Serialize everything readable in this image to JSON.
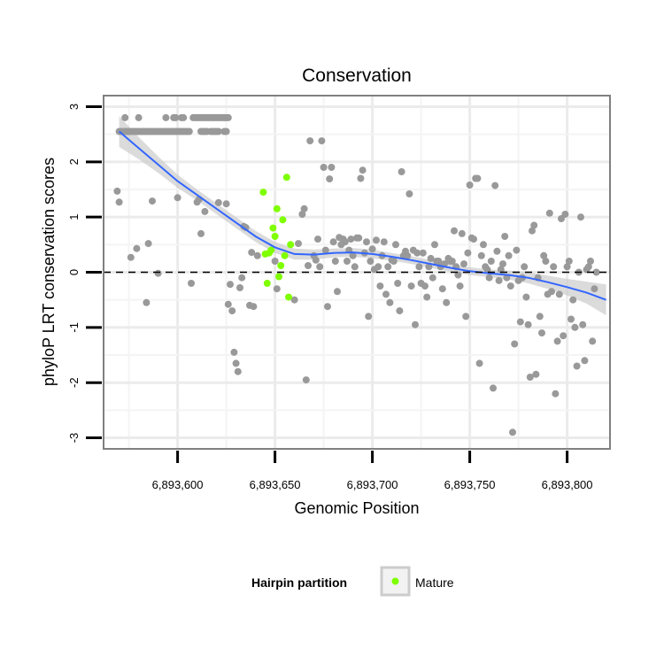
{
  "chart_data": {
    "type": "scatter",
    "title": "Conservation",
    "xlabel": "Genomic Position",
    "ylabel": "phyloP LRT conservation scores",
    "xlim": [
      6893562,
      6893822
    ],
    "ylim": [
      -3.2,
      3.2
    ],
    "x_ticks": [
      6893600,
      6893650,
      6893700,
      6893750,
      6893800
    ],
    "x_tick_labels": [
      "6,893,600",
      "6,893,650",
      "6,893,700",
      "6,893,750",
      "6,893,800"
    ],
    "y_ticks": [
      -3,
      -2,
      -1,
      0,
      1,
      2,
      3
    ],
    "y_tick_labels": [
      "-3",
      "-2",
      "-1",
      "0",
      "1",
      "2",
      "3"
    ],
    "grid": true,
    "reference_line": {
      "y": 0,
      "style": "dashed"
    },
    "colors": {
      "background_points": "#999999",
      "mature": "#7fff00",
      "smooth_line": "#3366ff",
      "ribbon": "#cccccc"
    },
    "series": [
      {
        "points": [
          [
            6893570,
            2.55
          ],
          [
            6893571,
            2.55
          ],
          [
            6893572,
            2.55
          ],
          [
            6893573,
            2.55
          ],
          [
            6893574,
            2.55
          ],
          [
            6893575,
            2.55
          ],
          [
            6893576,
            2.55
          ],
          [
            6893577,
            2.55
          ],
          [
            6893578,
            2.55
          ],
          [
            6893579,
            2.55
          ],
          [
            6893580,
            2.55
          ],
          [
            6893581,
            2.55
          ],
          [
            6893582,
            2.55
          ],
          [
            6893583,
            2.55
          ],
          [
            6893584,
            2.55
          ],
          [
            6893585,
            2.55
          ],
          [
            6893586,
            2.55
          ],
          [
            6893587,
            2.55
          ],
          [
            6893588,
            2.55
          ],
          [
            6893589,
            2.55
          ],
          [
            6893590,
            2.55
          ],
          [
            6893591,
            2.55
          ],
          [
            6893592,
            2.55
          ],
          [
            6893593,
            2.55
          ],
          [
            6893594,
            2.55
          ],
          [
            6893595,
            2.55
          ],
          [
            6893596,
            2.55
          ],
          [
            6893597,
            2.55
          ],
          [
            6893598,
            2.55
          ],
          [
            6893599,
            2.55
          ],
          [
            6893600,
            2.55
          ],
          [
            6893601,
            2.55
          ],
          [
            6893602,
            2.55
          ],
          [
            6893603,
            2.55
          ],
          [
            6893604,
            2.55
          ],
          [
            6893605,
            2.55
          ],
          [
            6893606,
            2.55
          ],
          [
            6893612,
            2.55
          ],
          [
            6893613,
            2.55
          ],
          [
            6893614,
            2.55
          ],
          [
            6893615,
            2.55
          ],
          [
            6893617,
            2.55
          ],
          [
            6893618,
            2.55
          ],
          [
            6893619,
            2.55
          ],
          [
            6893620,
            2.55
          ],
          [
            6893621,
            2.55
          ],
          [
            6893624,
            2.55
          ],
          [
            6893625,
            2.55
          ],
          [
            6893573,
            2.8
          ],
          [
            6893580,
            2.8
          ],
          [
            6893594,
            2.8
          ],
          [
            6893598,
            2.8
          ],
          [
            6893599,
            2.8
          ],
          [
            6893602,
            2.8
          ],
          [
            6893603,
            2.8
          ],
          [
            6893608,
            2.8
          ],
          [
            6893609,
            2.8
          ],
          [
            6893610,
            2.8
          ],
          [
            6893611,
            2.8
          ],
          [
            6893612,
            2.8
          ],
          [
            6893613,
            2.8
          ],
          [
            6893614,
            2.8
          ],
          [
            6893615,
            2.8
          ],
          [
            6893616,
            2.8
          ],
          [
            6893617,
            2.8
          ],
          [
            6893618,
            2.8
          ],
          [
            6893619,
            2.8
          ],
          [
            6893620,
            2.8
          ],
          [
            6893621,
            2.8
          ],
          [
            6893622,
            2.8
          ],
          [
            6893623,
            2.8
          ],
          [
            6893624,
            2.8
          ],
          [
            6893625,
            2.8
          ],
          [
            6893626,
            2.8
          ],
          [
            6893569,
            1.47
          ],
          [
            6893570,
            1.27
          ],
          [
            6893576,
            0.27
          ],
          [
            6893579,
            0.43
          ],
          [
            6893584,
            -0.55
          ],
          [
            6893585,
            0.52
          ],
          [
            6893587,
            1.29
          ],
          [
            6893590,
            -0.02
          ],
          [
            6893600,
            1.35
          ],
          [
            6893607,
            -0.2
          ],
          [
            6893610,
            1.27
          ],
          [
            6893611,
            1.32
          ],
          [
            6893612,
            0.7
          ],
          [
            6893614,
            1.1
          ],
          [
            6893621,
            1.26
          ],
          [
            6893625,
            1.24
          ],
          [
            6893626,
            -0.58
          ],
          [
            6893627,
            -0.22
          ],
          [
            6893628,
            -0.7
          ],
          [
            6893629,
            -1.45
          ],
          [
            6893630,
            -1.65
          ],
          [
            6893631,
            -1.8
          ],
          [
            6893632,
            -0.28
          ],
          [
            6893633,
            -0.1
          ],
          [
            6893634,
            0.83
          ],
          [
            6893635,
            0.81
          ],
          [
            6893637,
            -0.6
          ],
          [
            6893638,
            0.36
          ],
          [
            6893639,
            -0.62
          ],
          [
            6893641,
            0.3
          ],
          [
            6893650,
            0.2
          ],
          [
            6893651,
            -0.3
          ],
          [
            6893660,
            -0.5
          ],
          [
            6893662,
            0.52
          ],
          [
            6893664,
            1.05
          ],
          [
            6893665,
            1.15
          ],
          [
            6893666,
            -1.95
          ],
          [
            6893667,
            0.12
          ],
          [
            6893668,
            2.38
          ],
          [
            6893670,
            0.3
          ],
          [
            6893671,
            0.22
          ],
          [
            6893672,
            0.6
          ],
          [
            6893673,
            0.1
          ],
          [
            6893674,
            2.38
          ],
          [
            6893675,
            1.9
          ],
          [
            6893676,
            0.4
          ],
          [
            6893677,
            -0.62
          ],
          [
            6893678,
            1.69
          ],
          [
            6893679,
            1.9
          ],
          [
            6893680,
            0.55
          ],
          [
            6893681,
            0.2
          ],
          [
            6893682,
            -0.35
          ],
          [
            6893683,
            0.63
          ],
          [
            6893684,
            0.5
          ],
          [
            6893685,
            0.6
          ],
          [
            6893686,
            0.55
          ],
          [
            6893687,
            0.2
          ],
          [
            6893688,
            0.4
          ],
          [
            6893689,
            0.6
          ],
          [
            6893690,
            0.3
          ],
          [
            6893691,
            0.1
          ],
          [
            6893692,
            0.62
          ],
          [
            6893693,
            0.62
          ],
          [
            6893694,
            1.7
          ],
          [
            6893695,
            1.85
          ],
          [
            6893696,
            0.35
          ],
          [
            6893697,
            0.55
          ],
          [
            6893698,
            -0.8
          ],
          [
            6893699,
            0.2
          ],
          [
            6893700,
            0.42
          ],
          [
            6893701,
            0.05
          ],
          [
            6893702,
            0.58
          ],
          [
            6893703,
            0.1
          ],
          [
            6893704,
            -0.25
          ],
          [
            6893705,
            0.3
          ],
          [
            6893706,
            0.55
          ],
          [
            6893707,
            -0.4
          ],
          [
            6893708,
            0.1
          ],
          [
            6893709,
            -0.55
          ],
          [
            6893710,
            0.22
          ],
          [
            6893711,
            0.2
          ],
          [
            6893712,
            0.5
          ],
          [
            6893713,
            -0.2
          ],
          [
            6893714,
            -0.7
          ],
          [
            6893715,
            1.82
          ],
          [
            6893716,
            0.3
          ],
          [
            6893717,
            0.38
          ],
          [
            6893718,
            0.3
          ],
          [
            6893719,
            1.42
          ],
          [
            6893720,
            -0.25
          ],
          [
            6893721,
            0.4
          ],
          [
            6893722,
            -0.95
          ],
          [
            6893723,
            0.35
          ],
          [
            6893724,
            0.1
          ],
          [
            6893725,
            -0.2
          ],
          [
            6893726,
            0.35
          ],
          [
            6893727,
            -0.25
          ],
          [
            6893728,
            -0.45
          ],
          [
            6893729,
            0.1
          ],
          [
            6893730,
            0.25
          ],
          [
            6893731,
            -0.1
          ],
          [
            6893732,
            0.5
          ],
          [
            6893733,
            0.2
          ],
          [
            6893734,
            0.2
          ],
          [
            6893735,
            0.1
          ],
          [
            6893736,
            -0.3
          ],
          [
            6893737,
            0.15
          ],
          [
            6893738,
            -0.55
          ],
          [
            6893739,
            0.25
          ],
          [
            6893740,
            0.2
          ],
          [
            6893741,
            0.2
          ],
          [
            6893742,
            0.75
          ],
          [
            6893743,
            0.1
          ],
          [
            6893744,
            -0.05
          ],
          [
            6893745,
            -0.25
          ],
          [
            6893746,
            0.7
          ],
          [
            6893747,
            0.15
          ],
          [
            6893748,
            -0.8
          ],
          [
            6893749,
            0.35
          ],
          [
            6893750,
            1.58
          ],
          [
            6893751,
            0.62
          ],
          [
            6893752,
            0.6
          ],
          [
            6893753,
            1.7
          ],
          [
            6893754,
            1.7
          ],
          [
            6893755,
            -1.65
          ],
          [
            6893756,
            0.3
          ],
          [
            6893757,
            0.5
          ],
          [
            6893758,
            0.1
          ],
          [
            6893759,
            0.05
          ],
          [
            6893760,
            -0.1
          ],
          [
            6893761,
            0.2
          ],
          [
            6893762,
            -2.1
          ],
          [
            6893763,
            1.57
          ],
          [
            6893764,
            0.38
          ],
          [
            6893765,
            -0.15
          ],
          [
            6893766,
            0.05
          ],
          [
            6893767,
            0.15
          ],
          [
            6893768,
            0.65
          ],
          [
            6893769,
            -0.1
          ],
          [
            6893770,
            0.3
          ],
          [
            6893771,
            -0.25
          ],
          [
            6893772,
            -2.9
          ],
          [
            6893773,
            -1.3
          ],
          [
            6893774,
            0.4
          ],
          [
            6893775,
            -0.15
          ],
          [
            6893776,
            -0.9
          ],
          [
            6893777,
            -0.1
          ],
          [
            6893778,
            0.1
          ],
          [
            6893779,
            -0.45
          ],
          [
            6893780,
            -0.95
          ],
          [
            6893781,
            -1.9
          ],
          [
            6893782,
            0.75
          ],
          [
            6893783,
            0.85
          ],
          [
            6893784,
            -1.85
          ],
          [
            6893785,
            -0.1
          ],
          [
            6893786,
            -0.8
          ],
          [
            6893787,
            -1.1
          ],
          [
            6893788,
            0.3
          ],
          [
            6893789,
            0.2
          ],
          [
            6893790,
            -0.4
          ],
          [
            6893791,
            1.07
          ],
          [
            6893792,
            -0.35
          ],
          [
            6893793,
            0.1
          ],
          [
            6893794,
            -2.2
          ],
          [
            6893795,
            -1.25
          ],
          [
            6893796,
            -0.4
          ],
          [
            6893797,
            0.97
          ],
          [
            6893798,
            -1.15
          ],
          [
            6893799,
            1.05
          ],
          [
            6893800,
            0.1
          ],
          [
            6893801,
            0.2
          ],
          [
            6893802,
            -0.85
          ],
          [
            6893803,
            -0.5
          ],
          [
            6893804,
            -1.0
          ],
          [
            6893805,
            -1.7
          ],
          [
            6893806,
            0.0
          ],
          [
            6893807,
            1.0
          ],
          [
            6893808,
            -0.95
          ],
          [
            6893809,
            -1.6
          ],
          [
            6893810,
            0.05
          ],
          [
            6893811,
            0.1
          ],
          [
            6893812,
            0.2
          ],
          [
            6893813,
            -1.25
          ],
          [
            6893814,
            -0.3
          ],
          [
            6893815,
            0.0
          ]
        ],
        "color": "#999999"
      },
      {
        "name": "Mature",
        "points": [
          [
            6893644,
            1.45
          ],
          [
            6893645,
            0.33
          ],
          [
            6893646,
            -0.2
          ],
          [
            6893647,
            0.35
          ],
          [
            6893648,
            0.4
          ],
          [
            6893649,
            0.8
          ],
          [
            6893650,
            0.65
          ],
          [
            6893651,
            1.15
          ],
          [
            6893652,
            -0.08
          ],
          [
            6893653,
            0.12
          ],
          [
            6893654,
            0.95
          ],
          [
            6893655,
            0.3
          ],
          [
            6893656,
            1.72
          ],
          [
            6893657,
            -0.45
          ],
          [
            6893658,
            0.5
          ]
        ],
        "color": "#7fff00"
      }
    ],
    "smooth": {
      "x": [
        6893570,
        6893580,
        6893590,
        6893600,
        6893610,
        6893620,
        6893630,
        6893640,
        6893650,
        6893660,
        6893670,
        6893680,
        6893690,
        6893700,
        6893710,
        6893720,
        6893730,
        6893740,
        6893750,
        6893760,
        6893770,
        6893780,
        6893790,
        6893800,
        6893810,
        6893820
      ],
      "y": [
        2.55,
        2.25,
        1.95,
        1.65,
        1.4,
        1.15,
        0.9,
        0.65,
        0.45,
        0.33,
        0.32,
        0.35,
        0.36,
        0.33,
        0.28,
        0.22,
        0.15,
        0.08,
        0.02,
        -0.02,
        -0.05,
        -0.1,
        -0.18,
        -0.27,
        -0.37,
        -0.5
      ],
      "se": [
        0.28,
        0.2,
        0.15,
        0.12,
        0.1,
        0.1,
        0.1,
        0.1,
        0.1,
        0.1,
        0.09,
        0.08,
        0.08,
        0.08,
        0.07,
        0.07,
        0.07,
        0.07,
        0.07,
        0.07,
        0.08,
        0.1,
        0.12,
        0.15,
        0.2,
        0.28
      ]
    },
    "legend": {
      "title": "Hairpin partition",
      "entries": [
        {
          "label": "Mature",
          "color": "#7fff00"
        }
      ],
      "placement": "bottom"
    }
  }
}
